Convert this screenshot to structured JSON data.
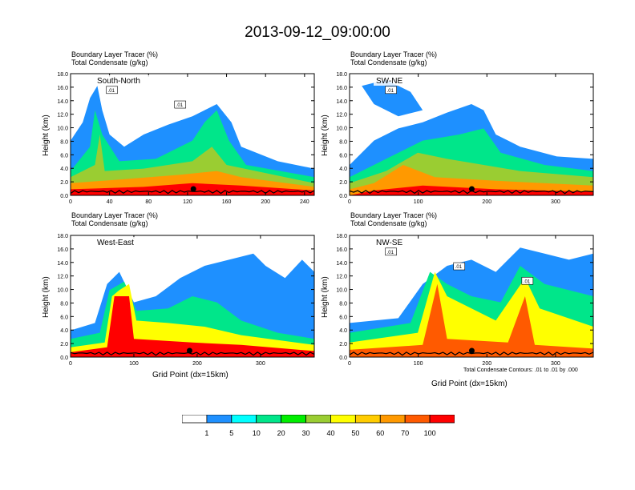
{
  "title": "2013-09-12_09:00:00",
  "subtitle_line1": "Boundary Layer Tracer   (%)",
  "subtitle_line2": "Total Condensate   (g/kg)",
  "ylabel": "Height (km)",
  "xlabel": "Grid Point (dx=15km)",
  "contour_note": "Total Condensate Contours: .01 to .01 by .000",
  "colorbar": {
    "labels": [
      "1",
      "5",
      "10",
      "20",
      "30",
      "40",
      "50",
      "60",
      "70",
      "100"
    ],
    "colors": [
      "#ffffff",
      "#1e90ff",
      "#00ffff",
      "#00e68a",
      "#00ee00",
      "#9acd32",
      "#ffff00",
      "#ffcc00",
      "#ff9900",
      "#ff5a00",
      "#ff0000"
    ]
  },
  "chart_data": [
    {
      "type": "heatmap",
      "name": "South-North",
      "xlim": [
        0,
        250
      ],
      "ylim": [
        0,
        18
      ],
      "xticks": [
        0,
        40,
        80,
        120,
        160,
        200,
        240
      ],
      "yticks": [
        0.0,
        2.0,
        4.0,
        6.0,
        8.0,
        10.0,
        12.0,
        14.0,
        16.0,
        18.0
      ],
      "marker_x": 126,
      "contour_labels": [
        ".01",
        ".01"
      ],
      "grid": false
    },
    {
      "type": "heatmap",
      "name": "SW-NE",
      "xlim": [
        0,
        355
      ],
      "ylim": [
        0,
        18
      ],
      "xticks": [
        0,
        100,
        200,
        300
      ],
      "yticks": [
        0.0,
        2.0,
        4.0,
        6.0,
        8.0,
        10.0,
        12.0,
        14.0,
        16.0,
        18.0
      ],
      "marker_x": 178,
      "contour_labels": [
        ".01"
      ],
      "grid": false
    },
    {
      "type": "heatmap",
      "name": "West-East",
      "xlim": [
        0,
        385
      ],
      "ylim": [
        0,
        18
      ],
      "xticks": [
        0,
        100,
        200,
        300
      ],
      "yticks": [
        0.0,
        2.0,
        4.0,
        6.0,
        8.0,
        10.0,
        12.0,
        14.0,
        16.0,
        18.0
      ],
      "marker_x": 188,
      "contour_labels": [],
      "grid": false
    },
    {
      "type": "heatmap",
      "name": "NW-SE",
      "xlim": [
        0,
        355
      ],
      "ylim": [
        0,
        18
      ],
      "xticks": [
        0,
        100,
        200,
        300
      ],
      "yticks": [
        0.0,
        2.0,
        4.0,
        6.0,
        8.0,
        10.0,
        12.0,
        14.0,
        16.0,
        18.0
      ],
      "marker_x": 178,
      "contour_labels": [
        ".01",
        ".01",
        ".01"
      ],
      "grid": false
    }
  ]
}
